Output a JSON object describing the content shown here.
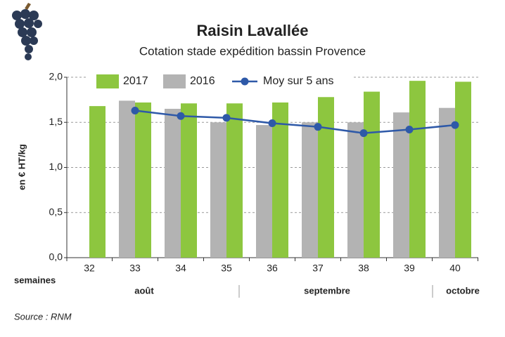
{
  "chart_data": {
    "type": "bar",
    "title": "Raisin Lavallée",
    "subtitle": "Cotation stade expédition bassin Provence",
    "ylabel": "en € HT/kg",
    "xlabel": "semaines",
    "month_labels": [
      "août",
      "septembre",
      "octobre"
    ],
    "source": "Source : RNM",
    "categories": [
      "32",
      "33",
      "34",
      "35",
      "36",
      "37",
      "38",
      "39",
      "40"
    ],
    "series": [
      {
        "name": "2017",
        "type": "bar",
        "color": "#8dc63f",
        "values": [
          1.68,
          1.72,
          1.71,
          1.71,
          1.72,
          1.78,
          1.84,
          1.96,
          1.95
        ]
      },
      {
        "name": "2016",
        "type": "bar",
        "color": "#b3b3b3",
        "values": [
          null,
          1.74,
          1.65,
          1.5,
          1.47,
          1.5,
          1.5,
          1.61,
          1.66
        ]
      },
      {
        "name": "Moy sur 5 ans",
        "type": "line",
        "color": "#2e59a8",
        "values": [
          null,
          1.63,
          1.57,
          1.55,
          1.49,
          1.45,
          1.38,
          1.42,
          1.47
        ]
      }
    ],
    "ylim": [
      0,
      2
    ],
    "yticks": [
      {
        "value": 0,
        "label": "0,0"
      },
      {
        "value": 0.5,
        "label": "0,5"
      },
      {
        "value": 1,
        "label": "1,0"
      },
      {
        "value": 1.5,
        "label": "1,5"
      },
      {
        "value": 2,
        "label": "2,0"
      }
    ],
    "grid": true
  }
}
